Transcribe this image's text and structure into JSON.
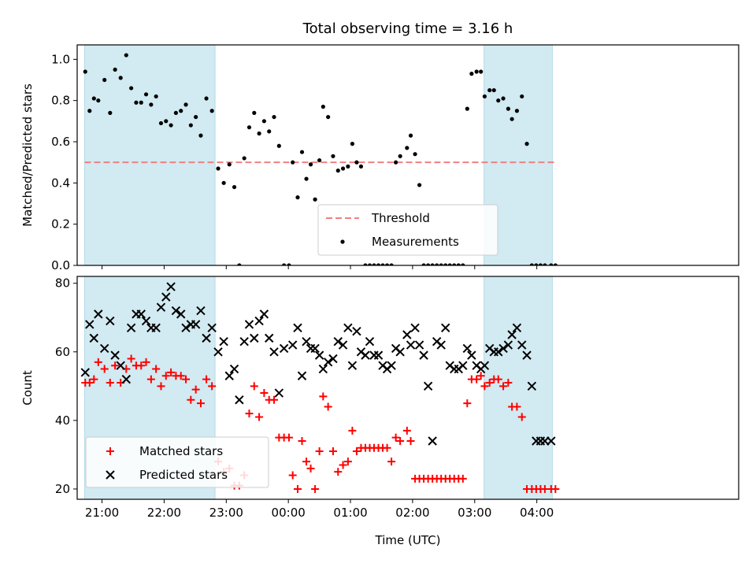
{
  "chart_data": [
    {
      "type": "scatter",
      "title": "Total observing time = 3.16 h",
      "ylabel": "Matched/Predicted stars",
      "xlabel": "",
      "xlim": [
        -3.4,
        7.25
      ],
      "ylim": [
        0.0,
        1.07
      ],
      "yticks": [
        0.0,
        0.2,
        0.4,
        0.6,
        0.8,
        1.0
      ],
      "ytick_labels": [
        "0.0",
        "0.2",
        "0.4",
        "0.6",
        "0.8",
        "1.0"
      ],
      "shaded_spans": [
        [
          -3.28,
          -1.18
        ],
        [
          3.15,
          4.25
        ]
      ],
      "shade_color": "#add8e6",
      "threshold": {
        "name": "Threshold",
        "y": 0.5,
        "x": [
          -3.28,
          4.28
        ],
        "color": "#f08080"
      },
      "series": [
        {
          "name": "Measurements",
          "color": "#000000",
          "x": [
            -3.27,
            -3.2,
            -3.13,
            -3.06,
            -2.96,
            -2.87,
            -2.79,
            -2.7,
            -2.61,
            -2.53,
            -2.45,
            -2.37,
            -2.29,
            -2.21,
            -2.13,
            -2.05,
            -1.97,
            -1.89,
            -1.81,
            -1.73,
            -1.65,
            -1.57,
            -1.49,
            -1.41,
            -1.32,
            -1.23,
            -1.13,
            -1.04,
            -0.95,
            -0.87,
            -0.79,
            -0.71,
            -0.63,
            -0.55,
            -0.47,
            -0.39,
            -0.31,
            -0.23,
            -0.15,
            -0.07,
            0.01,
            0.07,
            0.15,
            0.22,
            0.29,
            0.36,
            0.43,
            0.5,
            0.56,
            0.64,
            0.72,
            0.8,
            0.88,
            0.96,
            1.03,
            1.1,
            1.17,
            1.24,
            1.31,
            1.38,
            1.45,
            1.52,
            1.59,
            1.66,
            1.73,
            1.8,
            1.91,
            1.97,
            2.04,
            2.11,
            2.18,
            2.25,
            2.32,
            2.39,
            2.46,
            2.53,
            2.6,
            2.67,
            2.74,
            2.81,
            2.88,
            2.95,
            3.03,
            3.1,
            3.16,
            3.24,
            3.31,
            3.38,
            3.46,
            3.54,
            3.6,
            3.68,
            3.76,
            3.84,
            3.92,
            3.99,
            4.06,
            4.13,
            4.23,
            4.3
          ],
          "y": [
            0.94,
            0.75,
            0.81,
            0.8,
            0.9,
            0.74,
            0.95,
            0.91,
            1.02,
            0.86,
            0.79,
            0.79,
            0.83,
            0.78,
            0.82,
            0.69,
            0.7,
            0.68,
            0.74,
            0.75,
            0.78,
            0.68,
            0.72,
            0.63,
            0.81,
            0.75,
            0.47,
            0.4,
            0.49,
            0.38,
            0.0,
            0.52,
            0.67,
            0.74,
            0.64,
            0.7,
            0.65,
            0.72,
            0.58,
            0.0,
            0.0,
            0.5,
            0.33,
            0.55,
            0.42,
            0.49,
            0.32,
            0.51,
            0.77,
            0.72,
            0.53,
            0.46,
            0.47,
            0.48,
            0.59,
            0.5,
            0.48,
            0.0,
            0.0,
            0.0,
            0.0,
            0.0,
            0.0,
            0.0,
            0.5,
            0.53,
            0.57,
            0.63,
            0.54,
            0.39,
            0.0,
            0.0,
            0.0,
            0.0,
            0.0,
            0.0,
            0.0,
            0.0,
            0.0,
            0.0,
            0.76,
            0.93,
            0.94,
            0.94,
            0.82,
            0.85,
            0.85,
            0.8,
            0.81,
            0.76,
            0.71,
            0.75,
            0.82,
            0.59,
            0.0,
            0.0,
            0.0,
            0.0,
            0.0,
            0.0
          ]
        }
      ],
      "legend": {
        "placement": "lower-center",
        "entries": [
          "Threshold",
          "Measurements"
        ]
      }
    },
    {
      "type": "scatter",
      "title": "",
      "ylabel": "Count",
      "xlabel": "Time (UTC)",
      "xlim": [
        -3.4,
        7.25
      ],
      "ylim": [
        17,
        82
      ],
      "yticks": [
        20,
        40,
        60,
        80
      ],
      "ytick_labels": [
        "20",
        "40",
        "60",
        "80"
      ],
      "xticks": [
        -3.0,
        -2.0,
        -1.0,
        0.0,
        1.0,
        2.0,
        3.0,
        4.0
      ],
      "xtick_labels": [
        "21:00",
        "22:00",
        "23:00",
        "00:00",
        "01:00",
        "02:00",
        "03:00",
        "04:00"
      ],
      "shaded_spans": [
        [
          -3.28,
          -1.18
        ],
        [
          3.15,
          4.25
        ]
      ],
      "shade_color": "#add8e6",
      "series": [
        {
          "name": "Matched stars",
          "marker": "plus",
          "color": "#ff0000",
          "x": [
            -3.27,
            -3.2,
            -3.13,
            -3.06,
            -2.96,
            -2.87,
            -2.79,
            -2.7,
            -2.61,
            -2.53,
            -2.45,
            -2.37,
            -2.29,
            -2.21,
            -2.13,
            -2.05,
            -1.97,
            -1.89,
            -1.81,
            -1.73,
            -1.65,
            -1.57,
            -1.49,
            -1.41,
            -1.32,
            -1.23,
            -1.13,
            -1.04,
            -0.95,
            -0.87,
            -0.79,
            -0.71,
            -0.63,
            -0.55,
            -0.47,
            -0.39,
            -0.31,
            -0.23,
            -0.15,
            -0.07,
            0.01,
            0.07,
            0.15,
            0.22,
            0.29,
            0.36,
            0.43,
            0.5,
            0.56,
            0.64,
            0.72,
            0.8,
            0.88,
            0.96,
            1.03,
            1.1,
            1.17,
            1.24,
            1.31,
            1.38,
            1.45,
            1.52,
            1.59,
            1.66,
            1.73,
            1.8,
            1.91,
            1.97,
            2.04,
            2.11,
            2.18,
            2.25,
            2.32,
            2.39,
            2.46,
            2.53,
            2.6,
            2.67,
            2.74,
            2.81,
            2.88,
            2.95,
            3.03,
            3.1,
            3.16,
            3.24,
            3.31,
            3.38,
            3.46,
            3.54,
            3.6,
            3.68,
            3.76,
            3.84,
            3.92,
            3.99,
            4.06,
            4.13,
            4.23,
            4.3
          ],
          "y": [
            51,
            51,
            52,
            57,
            55,
            51,
            56,
            51,
            55,
            58,
            56,
            56,
            57,
            52,
            55,
            50,
            53,
            54,
            53,
            53,
            52,
            46,
            49,
            45,
            52,
            50,
            28,
            25,
            26,
            21,
            21,
            24,
            42,
            50,
            41,
            48,
            46,
            46,
            35,
            35,
            35,
            24,
            20,
            34,
            28,
            26,
            20,
            31,
            47,
            44,
            31,
            25,
            27,
            28,
            37,
            31,
            32,
            32,
            32,
            32,
            32,
            32,
            32,
            28,
            35,
            34,
            37,
            34,
            23,
            23,
            23,
            23,
            23,
            23,
            23,
            23,
            23,
            23,
            23,
            23,
            45,
            52,
            52,
            53,
            50,
            51,
            52,
            52,
            50,
            51,
            44,
            44,
            41,
            20,
            20,
            20,
            20,
            20,
            20,
            20
          ]
        },
        {
          "name": "Predicted stars",
          "marker": "x",
          "color": "#000000",
          "x": [
            -3.27,
            -3.2,
            -3.13,
            -3.06,
            -2.96,
            -2.87,
            -2.79,
            -2.7,
            -2.61,
            -2.53,
            -2.45,
            -2.37,
            -2.29,
            -2.21,
            -2.13,
            -2.05,
            -1.97,
            -1.89,
            -1.81,
            -1.73,
            -1.65,
            -1.57,
            -1.49,
            -1.41,
            -1.32,
            -1.23,
            -1.13,
            -1.04,
            -0.95,
            -0.87,
            -0.79,
            -0.71,
            -0.63,
            -0.55,
            -0.47,
            -0.39,
            -0.31,
            -0.23,
            -0.15,
            -0.07,
            0.07,
            0.15,
            0.22,
            0.29,
            0.36,
            0.43,
            0.5,
            0.56,
            0.64,
            0.72,
            0.8,
            0.88,
            0.96,
            1.03,
            1.1,
            1.17,
            1.24,
            1.31,
            1.38,
            1.45,
            1.52,
            1.59,
            1.66,
            1.73,
            1.8,
            1.91,
            1.97,
            2.04,
            2.11,
            2.18,
            2.25,
            2.32,
            2.39,
            2.46,
            2.53,
            2.6,
            2.67,
            2.74,
            2.81,
            2.88,
            2.95,
            3.03,
            3.1,
            3.16,
            3.24,
            3.31,
            3.38,
            3.46,
            3.54,
            3.6,
            3.68,
            3.76,
            3.84,
            3.92,
            3.99,
            4.06,
            4.13,
            4.23
          ],
          "y": [
            54,
            68,
            64,
            71,
            61,
            69,
            59,
            56,
            52,
            67,
            71,
            71,
            69,
            67,
            67,
            73,
            76,
            79,
            72,
            71,
            67,
            68,
            68,
            72,
            64,
            67,
            60,
            63,
            53,
            55,
            46,
            63,
            68,
            64,
            69,
            71,
            64,
            60,
            48,
            61,
            62,
            67,
            53,
            63,
            61,
            61,
            59,
            55,
            57,
            58,
            63,
            62,
            67,
            56,
            66,
            60,
            59,
            63,
            59,
            59,
            56,
            55,
            56,
            61,
            60,
            65,
            62,
            67,
            62,
            59,
            50,
            34,
            63,
            62,
            67,
            56,
            55,
            55,
            56,
            61,
            59,
            56,
            55,
            56,
            61,
            60,
            60,
            61,
            62,
            65,
            67,
            62,
            59,
            50,
            34,
            34,
            34,
            34
          ]
        }
      ],
      "legend": {
        "placement": "lower-left",
        "entries": [
          "Matched stars",
          "Predicted stars"
        ]
      }
    }
  ]
}
